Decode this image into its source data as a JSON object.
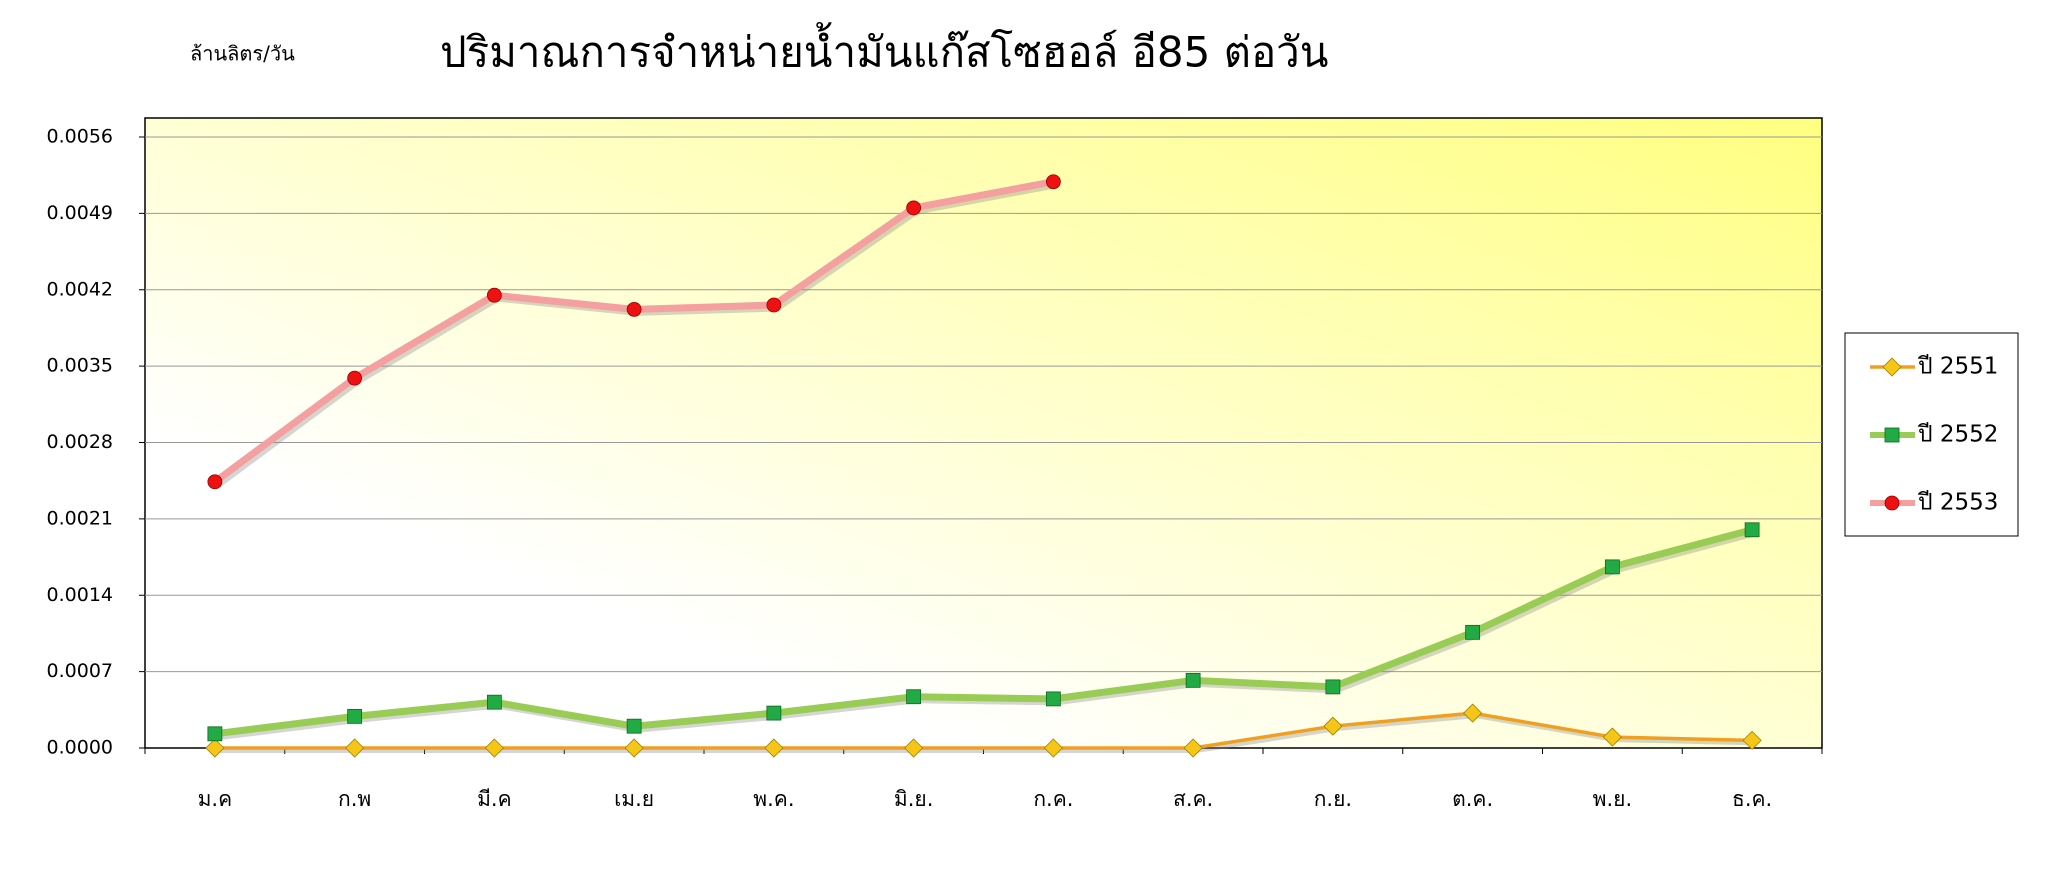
{
  "chart_data": {
    "type": "line",
    "title": "ปริมาณการจำหน่ายน้ำมันแก๊สโซฮอล์ อี85 ต่อวัน",
    "y_label": "ล้านลิตร/วัน",
    "categories": [
      "ม.ค",
      "ก.พ",
      "มี.ค",
      "เม.ย",
      "พ.ค.",
      "มิ.ย.",
      "ก.ค.",
      "ส.ค.",
      "ก.ย.",
      "ต.ค.",
      "พ.ย.",
      "ธ.ค."
    ],
    "series": [
      {
        "name": "ปี 2551",
        "color": "#f0a020",
        "marker": "diamond",
        "marker_color": "#f5c518",
        "values": [
          0,
          0,
          0,
          0,
          0,
          0,
          0,
          0,
          0.0002,
          0.00032,
          0.0001,
          7e-05
        ]
      },
      {
        "name": "ปี 2552",
        "color": "#99cc55",
        "marker": "square",
        "marker_color": "#22aa44",
        "values": [
          0.00013,
          0.00029,
          0.00042,
          0.0002,
          0.00032,
          0.00047,
          0.00045,
          0.00062,
          0.00056,
          0.00106,
          0.00166,
          0.002
        ]
      },
      {
        "name": "ปี 2553",
        "color": "#f4a0a0",
        "marker": "circle",
        "marker_color": "#ee1111",
        "values": [
          0.00244,
          0.00339,
          0.00415,
          0.00402,
          0.00406,
          0.00495,
          0.00519,
          null,
          null,
          null,
          null,
          null
        ]
      }
    ],
    "ylim": [
      0,
      0.0056
    ],
    "yticks": [
      {
        "value": 0,
        "label": "0.0000"
      },
      0.0007,
      0.0014,
      0.0021,
      0.0028,
      0.0035,
      0.0042,
      0.0049,
      0.0056
    ],
    "grid": true,
    "legend": "right"
  }
}
